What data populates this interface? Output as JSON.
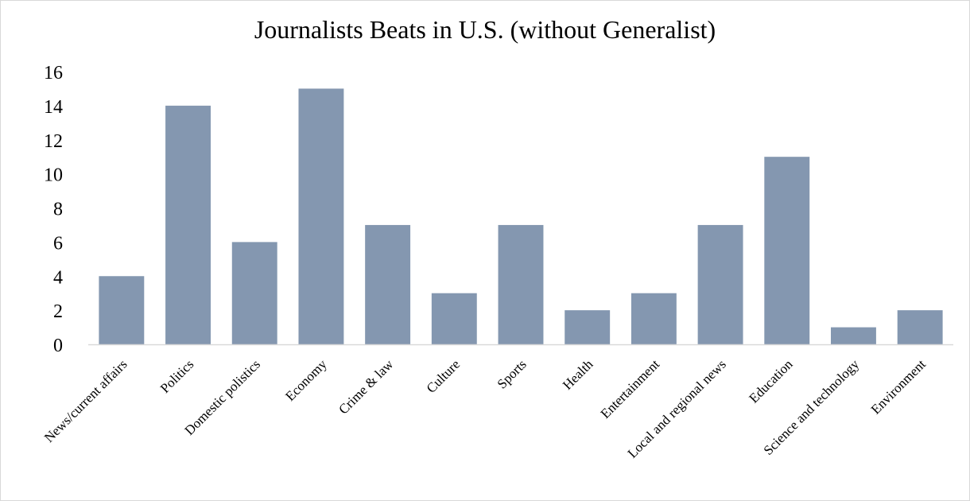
{
  "chart_data": {
    "type": "bar",
    "title": "Journalists Beats in U.S. (without Generalist)",
    "xlabel": "",
    "ylabel": "",
    "categories": [
      "News/current affairs",
      "Politics",
      "Domestic polistics",
      "Economy",
      "Crime & law",
      "Culture",
      "Sports",
      "Health",
      "Entertainment",
      "Local and regional news",
      "Education",
      "Science and technology",
      "Environment"
    ],
    "values": [
      4,
      14,
      6,
      15,
      7,
      3,
      7,
      2,
      3,
      7,
      11,
      1,
      2
    ],
    "ylim": [
      0,
      16
    ],
    "yticks": [
      "0",
      "2",
      "4",
      "6",
      "8",
      "10",
      "12",
      "14",
      "16"
    ],
    "grid": false,
    "legend": "none",
    "bar_color": "#8497b0"
  }
}
